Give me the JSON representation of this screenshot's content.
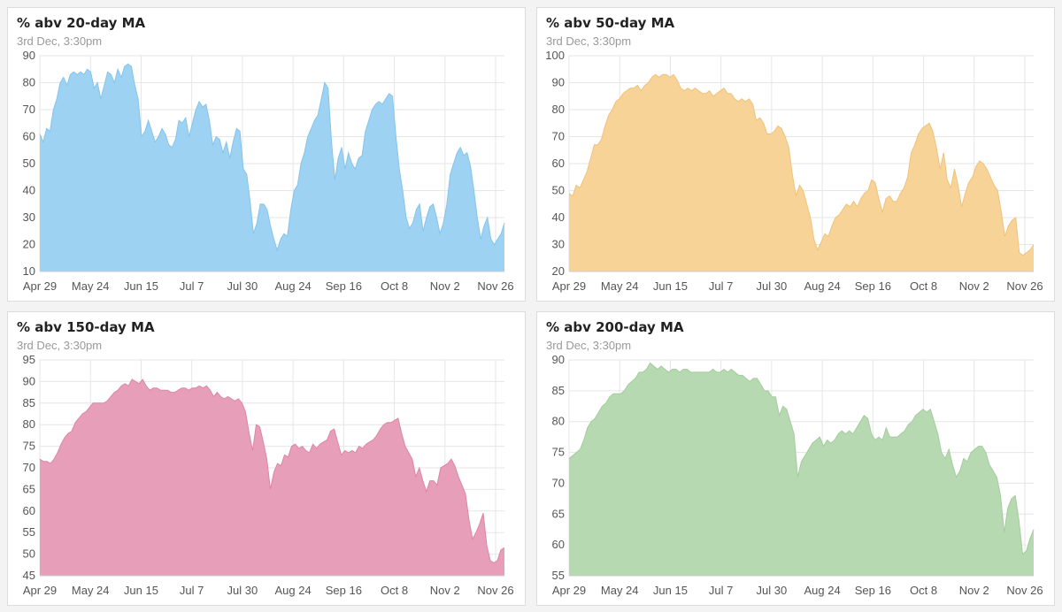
{
  "charts": [
    {
      "title": "% abv 20-day MA",
      "subtitle": "3rd Dec, 3:30pm",
      "fill_color": "#9dd2f2",
      "stroke_color": "#86c4ea",
      "chart_data": {
        "type": "area",
        "title": "% abv 20-day MA",
        "ylim": [
          10,
          90
        ],
        "y_ticks": [
          10,
          20,
          30,
          40,
          50,
          60,
          70,
          80,
          90
        ],
        "x_ticks": [
          "Apr 29",
          "May 24",
          "Jun 15",
          "Jul 7",
          "Jul 30",
          "Aug 24",
          "Sep 16",
          "Oct 8",
          "Nov 2",
          "Nov 26"
        ],
        "values": [
          61,
          58,
          63,
          62,
          70,
          74,
          80,
          82,
          79,
          83,
          84,
          83,
          84,
          83,
          85,
          84,
          78,
          80,
          74,
          79,
          84,
          83,
          80,
          85,
          82,
          86,
          87,
          86,
          79,
          74,
          60,
          62,
          66,
          62,
          58,
          60,
          63,
          61,
          57,
          56,
          59,
          66,
          65,
          67,
          60,
          65,
          70,
          73,
          71,
          72,
          66,
          57,
          60,
          59,
          54,
          58,
          52,
          58,
          63,
          62,
          48,
          46,
          36,
          24,
          28,
          35,
          35,
          33,
          27,
          22,
          18,
          22,
          24,
          23,
          33,
          40,
          42,
          50,
          54,
          60,
          63,
          66,
          68,
          74,
          80,
          78,
          58,
          44,
          52,
          56,
          48,
          54,
          50,
          48,
          52,
          53,
          62,
          66,
          70,
          72,
          73,
          72,
          74,
          76,
          75,
          60,
          48,
          40,
          30,
          26,
          28,
          33,
          35,
          25,
          30,
          34,
          35,
          30,
          24,
          28,
          35,
          46,
          50,
          54,
          56,
          53,
          54,
          49,
          40,
          30,
          22,
          27,
          30,
          22,
          20,
          22,
          24,
          28
        ]
      }
    },
    {
      "title": "% abv 50-day MA",
      "subtitle": "3rd Dec, 3:30pm",
      "fill_color": "#f7d397",
      "stroke_color": "#efc27c",
      "chart_data": {
        "type": "area",
        "title": "% abv 50-day MA",
        "ylim": [
          20,
          100
        ],
        "y_ticks": [
          20,
          30,
          40,
          50,
          60,
          70,
          80,
          90,
          100
        ],
        "x_ticks": [
          "Apr 29",
          "May 24",
          "Jun 15",
          "Jul 7",
          "Jul 30",
          "Aug 24",
          "Sep 16",
          "Oct 8",
          "Nov 2",
          "Nov 26"
        ],
        "values": [
          49,
          48,
          52,
          51,
          54,
          57,
          62,
          67,
          67,
          69,
          74,
          78,
          80,
          83,
          84,
          86,
          87,
          88,
          88,
          89,
          87,
          89,
          90,
          92,
          93,
          92,
          93,
          93,
          92,
          93,
          91,
          88,
          87,
          88,
          87,
          88,
          87,
          86,
          86,
          87,
          85,
          86,
          87,
          88,
          86,
          86,
          84,
          83,
          84,
          83,
          84,
          82,
          76,
          77,
          75,
          71,
          71,
          72,
          74,
          73,
          70,
          66,
          56,
          48,
          52,
          50,
          45,
          40,
          32,
          28,
          31,
          34,
          33,
          37,
          40,
          41,
          43,
          45,
          44,
          46,
          44,
          47,
          49,
          50,
          54,
          53,
          47,
          42,
          47,
          48,
          46,
          46,
          49,
          51,
          55,
          64,
          67,
          71,
          73,
          74,
          75,
          72,
          66,
          58,
          64,
          54,
          51,
          58,
          52,
          44,
          49,
          53,
          55,
          59,
          61,
          60,
          58,
          55,
          52,
          50,
          42,
          33,
          37,
          39,
          40,
          27,
          26,
          27,
          28,
          30
        ]
      }
    },
    {
      "title": "% abv 150-day MA",
      "subtitle": "3rd Dec, 3:30pm",
      "fill_color": "#e79eb8",
      "stroke_color": "#dc86a5",
      "chart_data": {
        "type": "area",
        "title": "% abv 150-day MA",
        "ylim": [
          45,
          95
        ],
        "y_ticks": [
          45,
          50,
          55,
          60,
          65,
          70,
          75,
          80,
          85,
          90,
          95
        ],
        "x_ticks": [
          "Apr 29",
          "May 24",
          "Jun 15",
          "Jul 7",
          "Jul 30",
          "Aug 24",
          "Sep 16",
          "Oct 8",
          "Nov 2",
          "Nov 26"
        ],
        "values": [
          72,
          71.5,
          71.5,
          71,
          72,
          73.5,
          75.5,
          77,
          78,
          78.5,
          80.5,
          81.5,
          82.5,
          83,
          84,
          85,
          85,
          85,
          85,
          85.5,
          86.5,
          87.5,
          88,
          89,
          89.5,
          89,
          90.5,
          90,
          89.5,
          90.5,
          89,
          88,
          88.5,
          88.5,
          88,
          88,
          88,
          87.5,
          87.5,
          88,
          88.5,
          88.5,
          88,
          88.5,
          88.5,
          89,
          88.5,
          89,
          88,
          86.5,
          87.5,
          86.5,
          86,
          86.5,
          86,
          85.5,
          86,
          85,
          83,
          78,
          74,
          80,
          79.5,
          76,
          72,
          65,
          69,
          71,
          70.5,
          73,
          72.5,
          75,
          75.5,
          74.5,
          75,
          74,
          73.5,
          75.5,
          74.5,
          75.5,
          76,
          76.5,
          78.5,
          79,
          76,
          73,
          74,
          73.5,
          74,
          73.5,
          75,
          74.5,
          75.5,
          76,
          76.5,
          77.5,
          79,
          80,
          80.5,
          80.5,
          81,
          81.5,
          78,
          75,
          73.5,
          72,
          68,
          70,
          67,
          64.5,
          67,
          67,
          66,
          70,
          70.5,
          71,
          72,
          70.5,
          68,
          66,
          64,
          58,
          53.5,
          55,
          57,
          59.5,
          52,
          48.5,
          48,
          48.5,
          51,
          51.5
        ]
      }
    },
    {
      "title": "% abv 200-day MA",
      "subtitle": "3rd Dec, 3:30pm",
      "fill_color": "#b6d9b1",
      "stroke_color": "#a2cc9c",
      "chart_data": {
        "type": "area",
        "title": "% abv 200-day MA",
        "ylim": [
          55,
          90
        ],
        "y_ticks": [
          55,
          60,
          65,
          70,
          75,
          80,
          85,
          90
        ],
        "x_ticks": [
          "Apr 29",
          "May 24",
          "Jun 15",
          "Jul 7",
          "Jul 30",
          "Aug 24",
          "Sep 16",
          "Oct 8",
          "Nov 2",
          "Nov 26"
        ],
        "values": [
          74,
          74.5,
          75,
          75.5,
          77,
          79,
          80,
          80.5,
          81.5,
          82.5,
          83,
          84,
          84.5,
          84.5,
          84.5,
          85,
          86,
          86.5,
          87,
          88,
          88,
          88.5,
          89.5,
          89,
          88.5,
          89,
          88.5,
          88,
          88.5,
          88.5,
          88,
          88.5,
          88.5,
          88,
          88,
          88,
          88,
          88,
          88,
          88.5,
          88,
          88,
          88.5,
          88,
          88.5,
          88,
          87.5,
          87.5,
          87,
          86.5,
          87,
          87,
          86,
          85,
          85,
          84,
          84,
          81,
          82.5,
          82,
          80,
          78,
          71,
          73.5,
          74.5,
          75.5,
          76.5,
          77,
          77.5,
          76,
          77,
          76.5,
          77,
          78,
          78.5,
          78,
          78.5,
          78,
          79,
          80,
          81,
          80.5,
          78,
          77,
          77.5,
          77,
          79,
          77.5,
          77.5,
          77.5,
          78,
          78.5,
          79.5,
          80,
          81,
          81.5,
          82,
          81.5,
          82,
          80,
          78,
          75,
          74,
          75.5,
          73,
          71,
          72,
          74,
          73.5,
          75,
          75.5,
          76,
          76,
          75,
          73,
          72,
          71,
          68,
          62,
          66,
          67.5,
          68,
          64,
          58.5,
          59,
          61,
          62.5
        ]
      }
    }
  ]
}
